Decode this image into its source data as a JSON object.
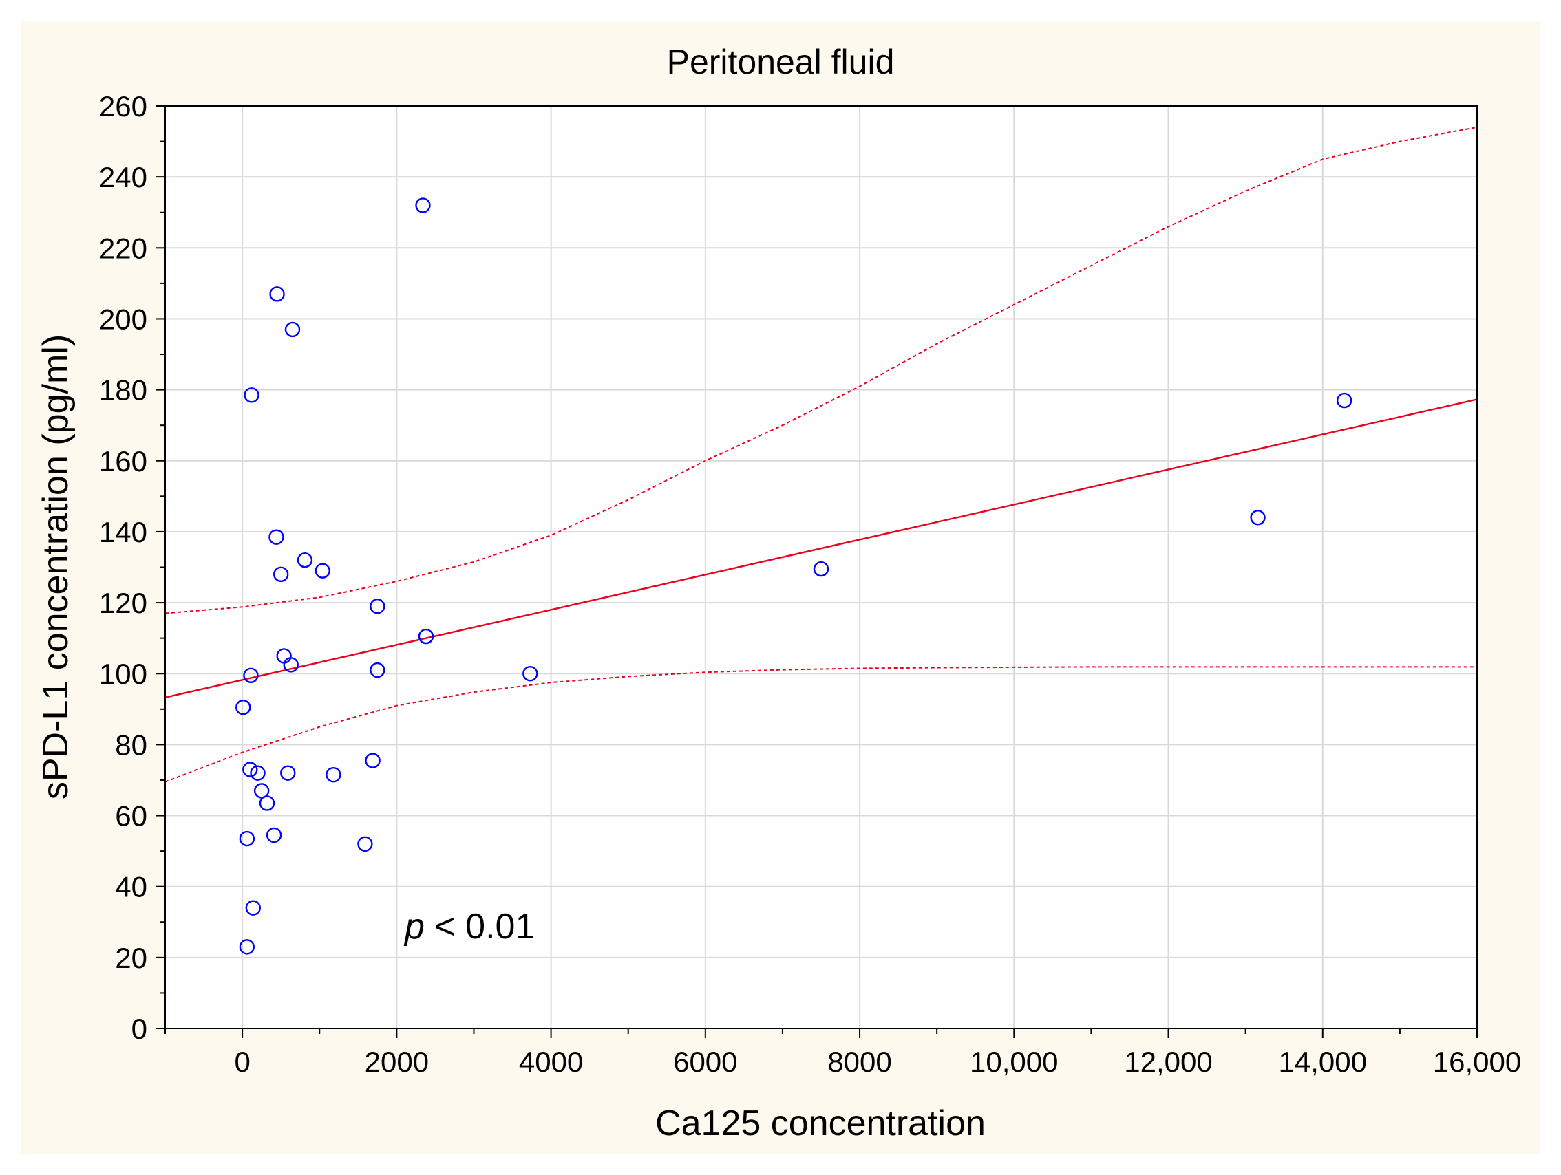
{
  "chart_data": {
    "type": "scatter",
    "title": "Peritoneal fluid",
    "xlabel": "Ca125 concentration",
    "ylabel": "sPD-L1 concentration (pg/ml)",
    "xlim": [
      -1000,
      16000
    ],
    "ylim": [
      0,
      260
    ],
    "x_ticks": [
      0,
      2000,
      4000,
      6000,
      8000,
      10000,
      12000,
      14000,
      16000
    ],
    "x_tick_labels": [
      "0",
      "2000",
      "4000",
      "6000",
      "8000",
      "10,000",
      "12,000",
      "14,000",
      "16,000"
    ],
    "y_ticks": [
      0,
      20,
      40,
      60,
      80,
      100,
      120,
      140,
      160,
      180,
      200,
      220,
      240,
      260
    ],
    "y_tick_labels": [
      "0",
      "20",
      "40",
      "60",
      "80",
      "100",
      "120",
      "140",
      "160",
      "180",
      "200",
      "220",
      "240",
      "260"
    ],
    "grid": true,
    "annotation": {
      "p_symbol": "p",
      "p_text": " < 0.01"
    },
    "series": [
      {
        "name": "observations",
        "marker": "open-circle",
        "color": "#0000ff",
        "points": [
          [
            2340,
            232
          ],
          [
            450,
            207
          ],
          [
            650,
            197
          ],
          [
            120,
            178.5
          ],
          [
            14280,
            177
          ],
          [
            13160,
            144
          ],
          [
            440,
            138.5
          ],
          [
            810,
            132
          ],
          [
            500,
            128
          ],
          [
            1040,
            129
          ],
          [
            7500,
            129.5
          ],
          [
            1750,
            119
          ],
          [
            2380,
            110.5
          ],
          [
            540,
            105
          ],
          [
            630,
            102.5
          ],
          [
            1750,
            101
          ],
          [
            3730,
            100
          ],
          [
            110,
            99.5
          ],
          [
            10,
            90.5
          ],
          [
            100,
            73
          ],
          [
            200,
            72
          ],
          [
            590,
            72
          ],
          [
            1180,
            71.5
          ],
          [
            1690,
            75.5
          ],
          [
            250,
            67
          ],
          [
            320,
            63.5
          ],
          [
            60,
            53.5
          ],
          [
            410,
            54.5
          ],
          [
            1590,
            52
          ],
          [
            140,
            34
          ],
          [
            60,
            23
          ]
        ]
      },
      {
        "name": "regression line",
        "style": "solid",
        "color": "#e8001c",
        "points": [
          [
            -1000,
            93.3
          ],
          [
            16000,
            177.3
          ]
        ]
      },
      {
        "name": "upper 95% confidence band",
        "style": "dashed",
        "color": "#e8001c",
        "points": [
          [
            -1000,
            117
          ],
          [
            0,
            118.8
          ],
          [
            1000,
            121.5
          ],
          [
            2000,
            126
          ],
          [
            3000,
            131.5
          ],
          [
            4000,
            139
          ],
          [
            5000,
            149
          ],
          [
            6000,
            160
          ],
          [
            7000,
            170
          ],
          [
            8000,
            181
          ],
          [
            9000,
            193
          ],
          [
            10000,
            204
          ],
          [
            11000,
            215
          ],
          [
            12000,
            226
          ],
          [
            13000,
            236
          ],
          [
            14000,
            245
          ],
          [
            15000,
            250
          ],
          [
            16000,
            254
          ]
        ]
      },
      {
        "name": "lower 95% confidence band",
        "style": "dashed",
        "color": "#e8001c",
        "points": [
          [
            -1000,
            69.5
          ],
          [
            0,
            77.8
          ],
          [
            1000,
            85
          ],
          [
            2000,
            91
          ],
          [
            3000,
            94.8
          ],
          [
            4000,
            97.5
          ],
          [
            5000,
            99.2
          ],
          [
            6000,
            100.4
          ],
          [
            7000,
            101.1
          ],
          [
            8000,
            101.5
          ],
          [
            9000,
            101.7
          ],
          [
            10000,
            101.8
          ],
          [
            11000,
            101.9
          ],
          [
            12000,
            101.9
          ],
          [
            13000,
            101.9
          ],
          [
            14000,
            101.9
          ],
          [
            15000,
            101.9
          ],
          [
            16000,
            101.9
          ]
        ]
      }
    ]
  },
  "colors": {
    "frame_background": "#fdf9ee",
    "plot_background": "#ffffff",
    "grid": "#d9d9d9",
    "axis": "#000000",
    "points": "#0000ff",
    "line": "#e8001c"
  }
}
